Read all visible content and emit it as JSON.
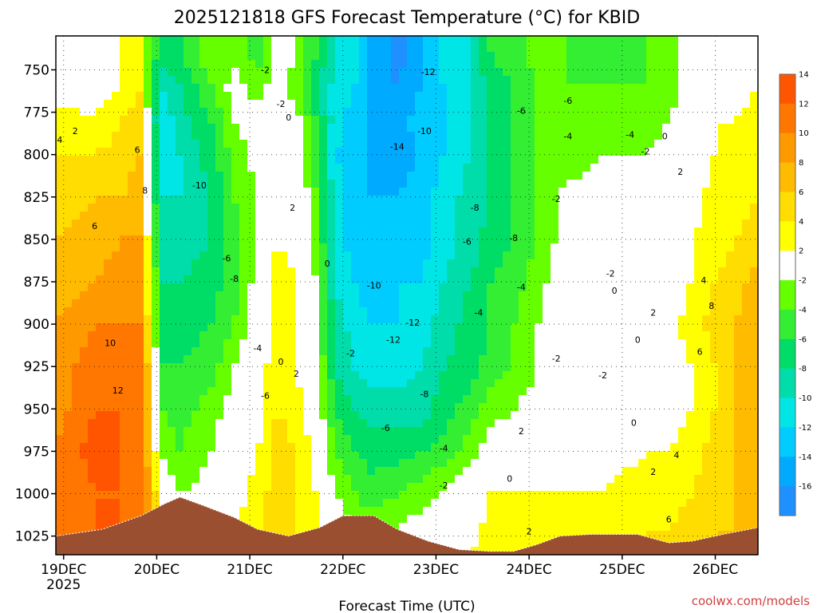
{
  "title": "2025121818 GFS Forecast Temperature (°C) for KBID",
  "credit": "coolwx.com/models",
  "chart_data": {
    "type": "heatmap",
    "title": "2025121818 GFS Forecast Temperature (°C) for KBID",
    "xlabel": "Forecast Time (UTC)",
    "ylabel": "",
    "x_ticks": [
      "19DEC",
      "20DEC",
      "21DEC",
      "22DEC",
      "23DEC",
      "24DEC",
      "25DEC",
      "26DEC"
    ],
    "x_tick_sublabel": "2025",
    "y_ticks": [
      750,
      775,
      800,
      825,
      850,
      875,
      900,
      925,
      950,
      975,
      1000,
      1025
    ],
    "y_range_hpa": [
      730,
      1036
    ],
    "x_range_hours_from_19DEC00": [
      -2.0,
      179.0
    ],
    "colorbar": {
      "labels": [
        -16,
        -14,
        -12,
        -10,
        -8,
        -6,
        -4,
        -2,
        2,
        4,
        6,
        8,
        10,
        12,
        14
      ],
      "bins": [
        {
          "lo": -18,
          "hi": -16,
          "color": "#1e90ff"
        },
        {
          "lo": -16,
          "hi": -14,
          "color": "#00aaff"
        },
        {
          "lo": -14,
          "hi": -12,
          "color": "#00ccff"
        },
        {
          "lo": -12,
          "hi": -10,
          "color": "#00e5e5"
        },
        {
          "lo": -10,
          "hi": -8,
          "color": "#00ddaa"
        },
        {
          "lo": -8,
          "hi": -6,
          "color": "#00dd66"
        },
        {
          "lo": -6,
          "hi": -4,
          "color": "#33ee33"
        },
        {
          "lo": -4,
          "hi": -2,
          "color": "#66ff00"
        },
        {
          "lo": -2,
          "hi": 2,
          "color": "#ffffff"
        },
        {
          "lo": 2,
          "hi": 4,
          "color": "#ffff00"
        },
        {
          "lo": 4,
          "hi": 6,
          "color": "#ffdd00"
        },
        {
          "lo": 6,
          "hi": 8,
          "color": "#ffbb00"
        },
        {
          "lo": 8,
          "hi": 10,
          "color": "#ff9900"
        },
        {
          "lo": 10,
          "hi": 12,
          "color": "#ff7700"
        },
        {
          "lo": 12,
          "hi": 14,
          "color": "#ff5500"
        }
      ]
    },
    "time_hours": [
      -2,
      8,
      15,
      20,
      22,
      25,
      30,
      38,
      44,
      50,
      55,
      60,
      65,
      70,
      75,
      79,
      86,
      92,
      98,
      105,
      110,
      116,
      122,
      127,
      133,
      138,
      144,
      150,
      156,
      162,
      168,
      173,
      179
    ],
    "pressure_hpa": [
      740,
      760,
      780,
      800,
      825,
      850,
      875,
      900,
      925,
      950,
      975,
      1000,
      1020,
      1036
    ],
    "temperature_c": [
      [
        -1,
        0,
        2,
        3,
        -4,
        -7,
        -6,
        -2,
        -3,
        -5,
        -1,
        -2,
        -6,
        -10,
        -11,
        -14,
        -17,
        -15,
        -11,
        -10,
        -6,
        -5,
        -3,
        -3,
        -5,
        -5,
        -5,
        -4,
        -3,
        -1,
        1,
        1,
        1
      ],
      [
        1,
        1,
        2,
        4,
        -4,
        -10,
        -8,
        -4,
        -1,
        -3,
        -1,
        -3,
        -7,
        -11,
        -12,
        -14,
        -16,
        -14,
        -12,
        -10,
        -7,
        -6,
        -4,
        -4,
        -4,
        -4,
        -4,
        -4,
        -3,
        -1,
        1,
        1,
        2
      ],
      [
        3,
        2,
        4,
        5,
        -3,
        -12,
        -9,
        -6,
        -2,
        -1,
        0,
        -1,
        -6,
        -11,
        -13,
        -14,
        -15,
        -13,
        -12,
        -10,
        -7,
        -6,
        -4,
        -4,
        -3,
        -3,
        -3,
        -3,
        -2,
        0,
        2,
        2,
        3
      ],
      [
        4,
        4,
        5,
        6,
        -2,
        -11,
        -10,
        -7,
        -3,
        -1,
        0,
        0,
        -5,
        -12,
        -13,
        -14,
        -15,
        -14,
        -12,
        -10,
        -8,
        -6,
        -4,
        -3,
        -3,
        -2,
        -2,
        -2,
        -1,
        0,
        2,
        3,
        3
      ],
      [
        5,
        6,
        6,
        7,
        -1,
        -10,
        -10,
        -8,
        -4,
        -2,
        1,
        1,
        -4,
        -11,
        -13,
        -14,
        -14,
        -13,
        -11,
        -9,
        -8,
        -6,
        -4,
        -2,
        -1,
        -1,
        0,
        0,
        0,
        1,
        3,
        3,
        4
      ],
      [
        6,
        7,
        8,
        8,
        1,
        -9,
        -9,
        -8,
        -5,
        -2,
        2,
        1,
        -3,
        -11,
        -13,
        -14,
        -13,
        -13,
        -11,
        -9,
        -7,
        -6,
        -4,
        -2,
        -1,
        0,
        0,
        0,
        1,
        2,
        3,
        4,
        5
      ],
      [
        7,
        8,
        9,
        9,
        2,
        -8,
        -8,
        -7,
        -5,
        -1,
        3,
        2,
        -2,
        -10,
        -12,
        -13,
        -12,
        -12,
        -10,
        -8,
        -6,
        -5,
        -3,
        -1,
        0,
        0,
        0,
        1,
        1,
        2,
        4,
        5,
        7
      ],
      [
        8,
        10,
        10,
        10,
        3,
        -7,
        -7,
        -6,
        -4,
        0,
        3,
        2,
        -2,
        -9,
        -11,
        -12,
        -12,
        -11,
        -9,
        -7,
        -6,
        -4,
        -2,
        -1,
        0,
        0,
        0,
        0,
        1,
        3,
        5,
        6,
        8
      ],
      [
        9,
        11,
        11,
        11,
        5,
        -6,
        -6,
        -5,
        -2,
        1,
        3,
        2,
        -1,
        -8,
        -10,
        -11,
        -11,
        -10,
        -8,
        -7,
        -5,
        -4,
        -2,
        -1,
        0,
        0,
        -1,
        0,
        1,
        2,
        4,
        6,
        8
      ],
      [
        9,
        12,
        12,
        11,
        6,
        -4,
        -5,
        -3,
        -1,
        1,
        4,
        3,
        0,
        -6,
        -8,
        -9,
        -9,
        -9,
        -7,
        -5,
        -3,
        -2,
        -1,
        0,
        0,
        0,
        0,
        0,
        1,
        2,
        4,
        6,
        7
      ],
      [
        10,
        13,
        12,
        11,
        7,
        -2,
        -4,
        -2,
        0,
        2,
        5,
        4,
        1,
        -4,
        -6,
        -7,
        -7,
        -6,
        -5,
        -3,
        -1,
        0,
        0,
        1,
        1,
        1,
        1,
        2,
        2,
        3,
        5,
        6,
        7
      ],
      [
        10,
        12,
        12,
        11,
        8,
        1,
        -2,
        -1,
        1,
        3,
        5,
        4,
        2,
        -2,
        -4,
        -5,
        -4,
        -3,
        -2,
        0,
        2,
        2,
        2,
        2,
        2,
        2,
        3,
        3,
        3,
        4,
        5,
        6,
        7
      ],
      [
        11,
        12,
        12,
        11,
        9,
        3,
        0,
        0,
        2,
        3,
        5,
        4,
        3,
        0,
        -2,
        -3,
        -2,
        -1,
        0,
        1,
        3,
        3,
        3,
        3,
        3,
        3,
        3,
        4,
        4,
        5,
        6,
        6,
        7
      ],
      [
        11,
        12,
        12,
        11,
        9,
        3,
        1,
        1,
        2,
        4,
        5,
        4,
        3,
        1,
        -1,
        -2,
        -1,
        0,
        1,
        2,
        3,
        3,
        3,
        3,
        3,
        3,
        4,
        4,
        4,
        5,
        6,
        6,
        7
      ]
    ],
    "surface_pressure_hpa": [
      [
        -2,
        1025
      ],
      [
        10,
        1021
      ],
      [
        20,
        1013
      ],
      [
        26,
        1006
      ],
      [
        30,
        1002
      ],
      [
        36,
        1007
      ],
      [
        44,
        1014
      ],
      [
        50,
        1021
      ],
      [
        58,
        1025
      ],
      [
        66,
        1020
      ],
      [
        72,
        1013
      ],
      [
        80,
        1013
      ],
      [
        86,
        1021
      ],
      [
        94,
        1028
      ],
      [
        102,
        1033
      ],
      [
        110,
        1034
      ],
      [
        116,
        1034
      ],
      [
        122,
        1030
      ],
      [
        128,
        1025
      ],
      [
        136,
        1024
      ],
      [
        148,
        1024
      ],
      [
        156,
        1029
      ],
      [
        162,
        1028
      ],
      [
        170,
        1024
      ],
      [
        179,
        1020
      ]
    ],
    "contour_labels": [
      {
        "t": 3,
        "p": 788,
        "v": "2"
      },
      {
        "t": -1,
        "p": 793,
        "v": "4"
      },
      {
        "t": 19,
        "p": 799,
        "v": "6"
      },
      {
        "t": 8,
        "p": 844,
        "v": "6"
      },
      {
        "t": 21,
        "p": 823,
        "v": "8"
      },
      {
        "t": 12,
        "p": 913,
        "v": "10"
      },
      {
        "t": 14,
        "p": 941,
        "v": "12"
      },
      {
        "t": 52,
        "p": 752,
        "v": "-2"
      },
      {
        "t": 56,
        "p": 772,
        "v": "-2"
      },
      {
        "t": 35,
        "p": 820,
        "v": "-10"
      },
      {
        "t": 42,
        "p": 863,
        "v": "-6"
      },
      {
        "t": 44,
        "p": 875,
        "v": "-8"
      },
      {
        "t": 50,
        "p": 916,
        "v": "-4"
      },
      {
        "t": 52,
        "p": 944,
        "v": "-6"
      },
      {
        "t": 58,
        "p": 780,
        "v": "0"
      },
      {
        "t": 59,
        "p": 833,
        "v": "2"
      },
      {
        "t": 56,
        "p": 924,
        "v": "0"
      },
      {
        "t": 60,
        "p": 931,
        "v": "2"
      },
      {
        "t": 68,
        "p": 866,
        "v": "0"
      },
      {
        "t": 74,
        "p": 919,
        "v": "-2"
      },
      {
        "t": 94,
        "p": 753,
        "v": "-12"
      },
      {
        "t": 93,
        "p": 788,
        "v": "-10"
      },
      {
        "t": 86,
        "p": 797,
        "v": "-14"
      },
      {
        "t": 80,
        "p": 879,
        "v": "-10"
      },
      {
        "t": 85,
        "p": 911,
        "v": "-12"
      },
      {
        "t": 90,
        "p": 901,
        "v": "-12"
      },
      {
        "t": 93,
        "p": 943,
        "v": "-8"
      },
      {
        "t": 83,
        "p": 963,
        "v": "-6"
      },
      {
        "t": 98,
        "p": 975,
        "v": "-4"
      },
      {
        "t": 98,
        "p": 997,
        "v": "-2"
      },
      {
        "t": 106,
        "p": 833,
        "v": "-8"
      },
      {
        "t": 104,
        "p": 853,
        "v": "-6"
      },
      {
        "t": 107,
        "p": 895,
        "v": "-4"
      },
      {
        "t": 118,
        "p": 776,
        "v": "-6"
      },
      {
        "t": 116,
        "p": 851,
        "v": "-8"
      },
      {
        "t": 118,
        "p": 880,
        "v": "-4"
      },
      {
        "t": 130,
        "p": 770,
        "v": "-6"
      },
      {
        "t": 130,
        "p": 791,
        "v": "-4"
      },
      {
        "t": 127,
        "p": 828,
        "v": "-2"
      },
      {
        "t": 127,
        "p": 922,
        "v": "-2"
      },
      {
        "t": 146,
        "p": 790,
        "v": "-4"
      },
      {
        "t": 150,
        "p": 800,
        "v": "-2"
      },
      {
        "t": 141,
        "p": 872,
        "v": "-2"
      },
      {
        "t": 142,
        "p": 882,
        "v": "0"
      },
      {
        "t": 148,
        "p": 911,
        "v": "0"
      },
      {
        "t": 139,
        "p": 932,
        "v": "-2"
      },
      {
        "t": 147,
        "p": 960,
        "v": "0"
      },
      {
        "t": 155,
        "p": 791,
        "v": "0"
      },
      {
        "t": 159,
        "p": 812,
        "v": "2"
      },
      {
        "t": 152,
        "p": 895,
        "v": "2"
      },
      {
        "t": 165,
        "p": 876,
        "v": "4"
      },
      {
        "t": 167,
        "p": 891,
        "v": "8"
      },
      {
        "t": 164,
        "p": 918,
        "v": "6"
      },
      {
        "t": 152,
        "p": 989,
        "v": "2"
      },
      {
        "t": 158,
        "p": 979,
        "v": "4"
      },
      {
        "t": 156,
        "p": 1017,
        "v": "6"
      },
      {
        "t": 115,
        "p": 993,
        "v": "0"
      },
      {
        "t": 118,
        "p": 965,
        "v": "2"
      },
      {
        "t": 120,
        "p": 1024,
        "v": "2"
      }
    ]
  }
}
